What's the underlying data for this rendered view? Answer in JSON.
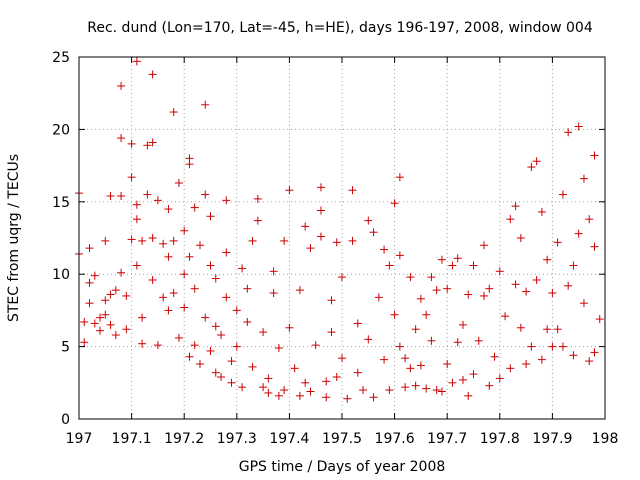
{
  "chart_data": {
    "type": "scatter",
    "title": "Rec. dund (Lon=170, Lat=-45, h=HE), days 196-197, 2008, window 004",
    "xlabel": "GPS time / Days of year 2008",
    "ylabel": "STEC from uqrg / TECUs",
    "xlim": [
      197,
      198
    ],
    "ylim": [
      0,
      25
    ],
    "xticks": [
      197,
      197.1,
      197.2,
      197.3,
      197.4,
      197.5,
      197.6,
      197.7,
      197.8,
      197.9,
      198
    ],
    "xtick_labels": [
      "197",
      "197.1",
      "197.2",
      "197.3",
      "197.4",
      "197.5",
      "197.6",
      "197.7",
      "197.8",
      "197.9",
      "198"
    ],
    "yticks": [
      0,
      5,
      10,
      15,
      20,
      25
    ],
    "ytick_labels": [
      "0",
      "5",
      "10",
      "15",
      "20",
      "25"
    ],
    "grid": true,
    "marker": "plus",
    "series": [
      {
        "name": "STEC",
        "color": "#cc0000",
        "points": [
          [
            197.0,
            15.6
          ],
          [
            197.0,
            11.4
          ],
          [
            197.01,
            6.7
          ],
          [
            197.01,
            5.3
          ],
          [
            197.02,
            11.8
          ],
          [
            197.02,
            9.4
          ],
          [
            197.02,
            8.0
          ],
          [
            197.03,
            6.6
          ],
          [
            197.03,
            9.9
          ],
          [
            197.04,
            7.0
          ],
          [
            197.04,
            6.1
          ],
          [
            197.05,
            12.3
          ],
          [
            197.05,
            8.2
          ],
          [
            197.05,
            7.2
          ],
          [
            197.06,
            8.6
          ],
          [
            197.06,
            15.4
          ],
          [
            197.06,
            6.5
          ],
          [
            197.07,
            5.8
          ],
          [
            197.07,
            8.9
          ],
          [
            197.08,
            23.0
          ],
          [
            197.08,
            19.4
          ],
          [
            197.08,
            15.4
          ],
          [
            197.08,
            10.1
          ],
          [
            197.09,
            8.5
          ],
          [
            197.09,
            6.2
          ],
          [
            197.1,
            16.7
          ],
          [
            197.1,
            12.4
          ],
          [
            197.1,
            19.0
          ],
          [
            197.11,
            24.7
          ],
          [
            197.11,
            14.8
          ],
          [
            197.11,
            13.8
          ],
          [
            197.11,
            10.6
          ],
          [
            197.12,
            12.3
          ],
          [
            197.12,
            7.0
          ],
          [
            197.12,
            5.2
          ],
          [
            197.13,
            18.9
          ],
          [
            197.13,
            15.5
          ],
          [
            197.14,
            12.5
          ],
          [
            197.14,
            23.8
          ],
          [
            197.14,
            19.1
          ],
          [
            197.14,
            9.6
          ],
          [
            197.15,
            5.1
          ],
          [
            197.15,
            15.1
          ],
          [
            197.16,
            12.1
          ],
          [
            197.16,
            8.4
          ],
          [
            197.17,
            14.5
          ],
          [
            197.17,
            11.2
          ],
          [
            197.17,
            7.5
          ],
          [
            197.18,
            21.2
          ],
          [
            197.18,
            12.3
          ],
          [
            197.18,
            8.7
          ],
          [
            197.19,
            5.6
          ],
          [
            197.19,
            16.3
          ],
          [
            197.2,
            13.0
          ],
          [
            197.2,
            10.0
          ],
          [
            197.2,
            7.7
          ],
          [
            197.21,
            18.0
          ],
          [
            197.21,
            17.6
          ],
          [
            197.21,
            11.2
          ],
          [
            197.21,
            4.3
          ],
          [
            197.22,
            5.1
          ],
          [
            197.22,
            14.6
          ],
          [
            197.22,
            9.0
          ],
          [
            197.23,
            3.8
          ],
          [
            197.23,
            12.0
          ],
          [
            197.24,
            21.7
          ],
          [
            197.24,
            15.5
          ],
          [
            197.24,
            7.0
          ],
          [
            197.25,
            4.7
          ],
          [
            197.25,
            14.0
          ],
          [
            197.25,
            10.6
          ],
          [
            197.26,
            3.2
          ],
          [
            197.26,
            9.7
          ],
          [
            197.26,
            6.4
          ],
          [
            197.27,
            5.8
          ],
          [
            197.27,
            2.9
          ],
          [
            197.28,
            15.1
          ],
          [
            197.28,
            11.5
          ],
          [
            197.28,
            8.4
          ],
          [
            197.29,
            4.0
          ],
          [
            197.29,
            2.5
          ],
          [
            197.3,
            7.5
          ],
          [
            197.3,
            5.0
          ],
          [
            197.31,
            10.4
          ],
          [
            197.31,
            2.2
          ],
          [
            197.32,
            9.0
          ],
          [
            197.32,
            6.7
          ],
          [
            197.33,
            12.3
          ],
          [
            197.33,
            3.6
          ],
          [
            197.34,
            15.2
          ],
          [
            197.34,
            13.7
          ],
          [
            197.35,
            6.0
          ],
          [
            197.35,
            2.2
          ],
          [
            197.36,
            2.8
          ],
          [
            197.36,
            1.8
          ],
          [
            197.37,
            10.2
          ],
          [
            197.37,
            8.7
          ],
          [
            197.38,
            4.9
          ],
          [
            197.38,
            1.6
          ],
          [
            197.39,
            12.3
          ],
          [
            197.39,
            2.0
          ],
          [
            197.4,
            6.3
          ],
          [
            197.4,
            15.8
          ],
          [
            197.41,
            3.5
          ],
          [
            197.42,
            1.6
          ],
          [
            197.42,
            8.9
          ],
          [
            197.43,
            2.5
          ],
          [
            197.43,
            13.3
          ],
          [
            197.44,
            1.9
          ],
          [
            197.44,
            11.8
          ],
          [
            197.45,
            5.1
          ],
          [
            197.46,
            16.0
          ],
          [
            197.46,
            14.4
          ],
          [
            197.46,
            12.6
          ],
          [
            197.47,
            2.6
          ],
          [
            197.47,
            1.5
          ],
          [
            197.48,
            8.2
          ],
          [
            197.48,
            6.0
          ],
          [
            197.49,
            2.9
          ],
          [
            197.49,
            12.2
          ],
          [
            197.5,
            4.2
          ],
          [
            197.5,
            9.8
          ],
          [
            197.51,
            1.4
          ],
          [
            197.52,
            15.8
          ],
          [
            197.52,
            12.3
          ],
          [
            197.53,
            6.6
          ],
          [
            197.53,
            3.2
          ],
          [
            197.54,
            2.0
          ],
          [
            197.55,
            13.7
          ],
          [
            197.55,
            5.5
          ],
          [
            197.56,
            12.9
          ],
          [
            197.56,
            1.5
          ],
          [
            197.57,
            8.4
          ],
          [
            197.58,
            4.1
          ],
          [
            197.58,
            11.7
          ],
          [
            197.59,
            10.6
          ],
          [
            197.59,
            2.0
          ],
          [
            197.6,
            14.9
          ],
          [
            197.6,
            7.2
          ],
          [
            197.61,
            5.0
          ],
          [
            197.61,
            16.7
          ],
          [
            197.61,
            11.3
          ],
          [
            197.62,
            2.2
          ],
          [
            197.62,
            4.2
          ],
          [
            197.63,
            3.5
          ],
          [
            197.63,
            9.8
          ],
          [
            197.64,
            2.3
          ],
          [
            197.64,
            6.2
          ],
          [
            197.65,
            8.3
          ],
          [
            197.65,
            3.7
          ],
          [
            197.66,
            2.1
          ],
          [
            197.66,
            7.2
          ],
          [
            197.67,
            9.8
          ],
          [
            197.67,
            5.4
          ],
          [
            197.68,
            2.0
          ],
          [
            197.68,
            8.9
          ],
          [
            197.69,
            11.0
          ],
          [
            197.69,
            1.9
          ],
          [
            197.7,
            3.8
          ],
          [
            197.7,
            9.0
          ],
          [
            197.71,
            10.6
          ],
          [
            197.71,
            2.5
          ],
          [
            197.72,
            5.3
          ],
          [
            197.72,
            11.1
          ],
          [
            197.73,
            6.5
          ],
          [
            197.73,
            2.7
          ],
          [
            197.74,
            8.6
          ],
          [
            197.74,
            1.6
          ],
          [
            197.75,
            10.6
          ],
          [
            197.75,
            3.1
          ],
          [
            197.76,
            5.4
          ],
          [
            197.77,
            12.0
          ],
          [
            197.77,
            8.5
          ],
          [
            197.78,
            2.3
          ],
          [
            197.78,
            9.0
          ],
          [
            197.79,
            4.3
          ],
          [
            197.8,
            10.2
          ],
          [
            197.8,
            2.8
          ],
          [
            197.81,
            7.1
          ],
          [
            197.82,
            13.8
          ],
          [
            197.82,
            3.5
          ],
          [
            197.83,
            14.7
          ],
          [
            197.83,
            9.3
          ],
          [
            197.84,
            12.5
          ],
          [
            197.84,
            6.3
          ],
          [
            197.85,
            3.8
          ],
          [
            197.85,
            8.8
          ],
          [
            197.86,
            17.4
          ],
          [
            197.86,
            5.0
          ],
          [
            197.87,
            17.8
          ],
          [
            197.87,
            9.6
          ],
          [
            197.88,
            14.3
          ],
          [
            197.88,
            4.1
          ],
          [
            197.89,
            11.0
          ],
          [
            197.89,
            6.2
          ],
          [
            197.9,
            5.0
          ],
          [
            197.9,
            8.7
          ],
          [
            197.91,
            12.2
          ],
          [
            197.91,
            6.2
          ],
          [
            197.92,
            15.5
          ],
          [
            197.92,
            5.0
          ],
          [
            197.93,
            9.2
          ],
          [
            197.93,
            19.8
          ],
          [
            197.94,
            10.6
          ],
          [
            197.94,
            4.4
          ],
          [
            197.95,
            20.2
          ],
          [
            197.95,
            12.8
          ],
          [
            197.96,
            16.6
          ],
          [
            197.96,
            8.0
          ],
          [
            197.97,
            13.8
          ],
          [
            197.97,
            4.0
          ],
          [
            197.98,
            18.2
          ],
          [
            197.98,
            11.9
          ],
          [
            197.98,
            4.6
          ],
          [
            197.99,
            6.9
          ]
        ]
      }
    ]
  }
}
